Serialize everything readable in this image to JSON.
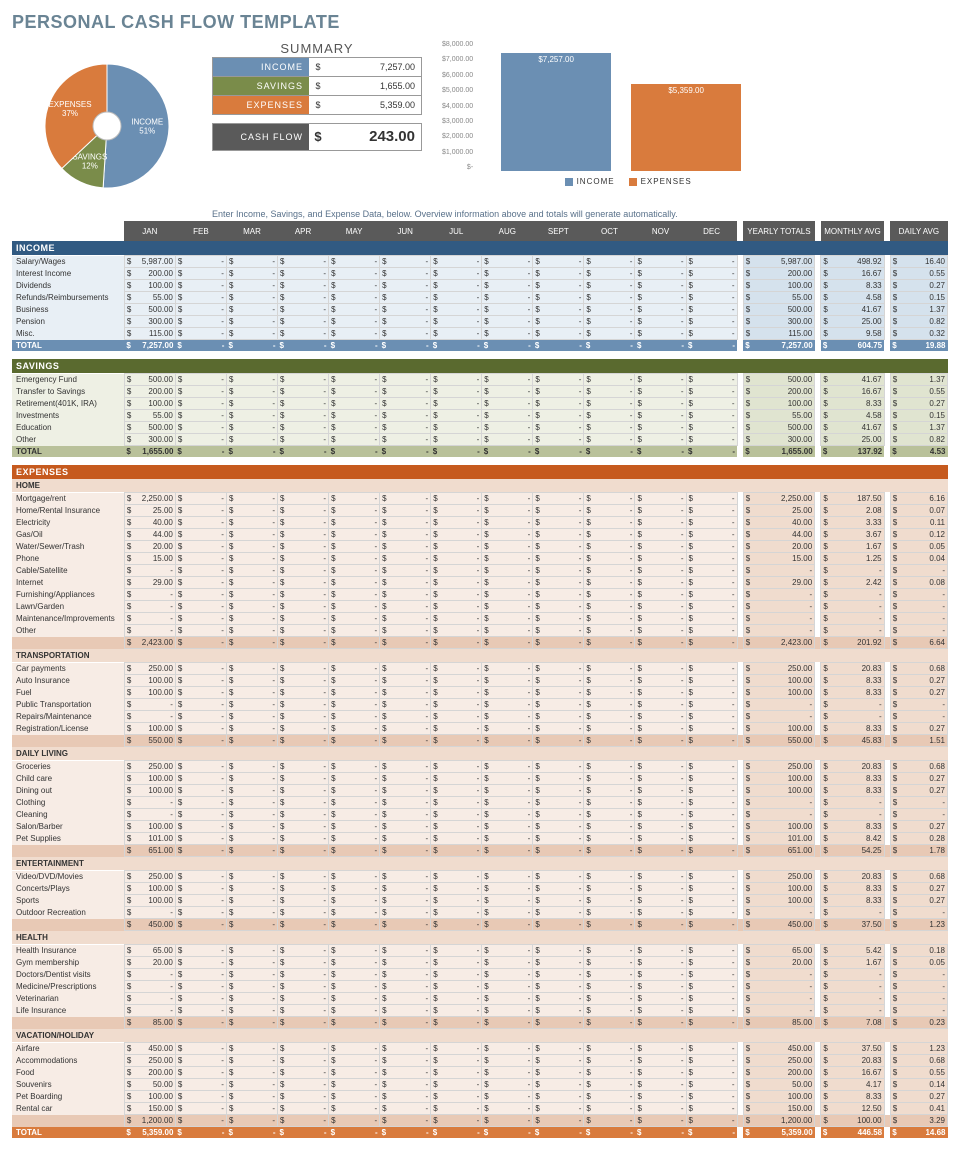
{
  "title": "PERSONAL CASH FLOW TEMPLATE",
  "note": "Enter Income, Savings, and Expense Data, below.  Overview information above and totals will generate automatically.",
  "colors": {
    "income": "#6b8fb3",
    "savings": "#7a8c4a",
    "expenses": "#d97b3d",
    "cashflow": "#5a5a5a"
  },
  "pie": {
    "type": "pie",
    "slices": [
      {
        "label": "INCOME",
        "pct": 51,
        "color": "#6b8fb3"
      },
      {
        "label": "SAVINGS",
        "pct": 12,
        "color": "#7a8c4a"
      },
      {
        "label": "EXPENSES",
        "pct": 37,
        "color": "#d97b3d"
      }
    ]
  },
  "summary": {
    "title": "SUMMARY",
    "rows": [
      {
        "label": "INCOME",
        "value": "7,257.00",
        "color": "#6b8fb3"
      },
      {
        "label": "SAVINGS",
        "value": "1,655.00",
        "color": "#7a8c4a"
      },
      {
        "label": "EXPENSES",
        "value": "5,359.00",
        "color": "#d97b3d"
      }
    ],
    "cashflow": {
      "label": "CASH FLOW",
      "value": "243.00"
    }
  },
  "barchart": {
    "type": "bar",
    "ymax": 8000,
    "ystep": 1000,
    "ylabels": [
      "$8,000.00",
      "$7,000.00",
      "$6,000.00",
      "$5,000.00",
      "$4,000.00",
      "$3,000.00",
      "$2,000.00",
      "$1,000.00",
      "$-"
    ],
    "bars": [
      {
        "label": "INCOME",
        "value": 7257,
        "display": "$7,257.00",
        "color": "#6b8fb3"
      },
      {
        "label": "EXPENSES",
        "value": 5359,
        "display": "$5,359.00",
        "color": "#d97b3d"
      }
    ]
  },
  "months": [
    "JAN",
    "FEB",
    "MAR",
    "APR",
    "MAY",
    "JUN",
    "JUL",
    "AUG",
    "SEPT",
    "OCT",
    "NOV",
    "DEC"
  ],
  "agg": [
    "YEARLY TOTALS",
    "MONTHLY AVG",
    "DAILY AVG"
  ],
  "sections": [
    {
      "name": "INCOME",
      "color": "#315a82",
      "rowcls": "income-bg",
      "rows": [
        {
          "l": "Salary/Wages",
          "jan": "5,987.00",
          "yt": "5,987.00",
          "ma": "498.92",
          "da": "16.40"
        },
        {
          "l": "Interest Income",
          "jan": "200.00",
          "yt": "200.00",
          "ma": "16.67",
          "da": "0.55"
        },
        {
          "l": "Dividends",
          "jan": "100.00",
          "yt": "100.00",
          "ma": "8.33",
          "da": "0.27"
        },
        {
          "l": "Refunds/Reimbursements",
          "jan": "55.00",
          "yt": "55.00",
          "ma": "4.58",
          "da": "0.15"
        },
        {
          "l": "Business",
          "jan": "500.00",
          "yt": "500.00",
          "ma": "41.67",
          "da": "1.37"
        },
        {
          "l": "Pension",
          "jan": "300.00",
          "yt": "300.00",
          "ma": "25.00",
          "da": "0.82"
        },
        {
          "l": "Misc.",
          "jan": "115.00",
          "yt": "115.00",
          "ma": "9.58",
          "da": "0.32"
        }
      ],
      "total": {
        "l": "TOTAL",
        "jan": "7,257.00",
        "yt": "7,257.00",
        "ma": "604.75",
        "da": "19.88"
      }
    },
    {
      "name": "SAVINGS",
      "color": "#5a6a2f",
      "rowcls": "sav-bg",
      "rows": [
        {
          "l": "Emergency Fund",
          "jan": "500.00",
          "yt": "500.00",
          "ma": "41.67",
          "da": "1.37"
        },
        {
          "l": "Transfer to Savings",
          "jan": "200.00",
          "yt": "200.00",
          "ma": "16.67",
          "da": "0.55"
        },
        {
          "l": "Retirement(401K, IRA)",
          "jan": "100.00",
          "yt": "100.00",
          "ma": "8.33",
          "da": "0.27"
        },
        {
          "l": "Investments",
          "jan": "55.00",
          "yt": "55.00",
          "ma": "4.58",
          "da": "0.15"
        },
        {
          "l": "Education",
          "jan": "500.00",
          "yt": "500.00",
          "ma": "41.67",
          "da": "1.37"
        },
        {
          "l": "Other",
          "jan": "300.00",
          "yt": "300.00",
          "ma": "25.00",
          "da": "0.82"
        }
      ],
      "total": {
        "l": "TOTAL",
        "jan": "1,655.00",
        "yt": "1,655.00",
        "ma": "137.92",
        "da": "4.53"
      }
    },
    {
      "name": "EXPENSES",
      "color": "#c65a1e",
      "rowcls": "exp-bg",
      "groups": [
        {
          "name": "HOME",
          "rows": [
            {
              "l": "Mortgage/rent",
              "jan": "2,250.00",
              "yt": "2,250.00",
              "ma": "187.50",
              "da": "6.16"
            },
            {
              "l": "Home/Rental Insurance",
              "jan": "25.00",
              "yt": "25.00",
              "ma": "2.08",
              "da": "0.07"
            },
            {
              "l": "Electricity",
              "jan": "40.00",
              "yt": "40.00",
              "ma": "3.33",
              "da": "0.11"
            },
            {
              "l": "Gas/Oil",
              "jan": "44.00",
              "yt": "44.00",
              "ma": "3.67",
              "da": "0.12"
            },
            {
              "l": "Water/Sewer/Trash",
              "jan": "20.00",
              "yt": "20.00",
              "ma": "1.67",
              "da": "0.05"
            },
            {
              "l": "Phone",
              "jan": "15.00",
              "yt": "15.00",
              "ma": "1.25",
              "da": "0.04"
            },
            {
              "l": "Cable/Satellite",
              "jan": "-",
              "yt": "-",
              "ma": "-",
              "da": "-"
            },
            {
              "l": "Internet",
              "jan": "29.00",
              "yt": "29.00",
              "ma": "2.42",
              "da": "0.08"
            },
            {
              "l": "Furnishing/Appliances",
              "jan": "-",
              "yt": "-",
              "ma": "-",
              "da": "-"
            },
            {
              "l": "Lawn/Garden",
              "jan": "-",
              "yt": "-",
              "ma": "-",
              "da": "-"
            },
            {
              "l": "Maintenance/Improvements",
              "jan": "-",
              "yt": "-",
              "ma": "-",
              "da": "-"
            },
            {
              "l": "Other",
              "jan": "-",
              "yt": "-",
              "ma": "-",
              "da": "-"
            }
          ],
          "sub": {
            "jan": "2,423.00",
            "yt": "2,423.00",
            "ma": "201.92",
            "da": "6.64"
          }
        },
        {
          "name": "TRANSPORTATION",
          "rows": [
            {
              "l": "Car payments",
              "jan": "250.00",
              "yt": "250.00",
              "ma": "20.83",
              "da": "0.68"
            },
            {
              "l": "Auto Insurance",
              "jan": "100.00",
              "yt": "100.00",
              "ma": "8.33",
              "da": "0.27"
            },
            {
              "l": "Fuel",
              "jan": "100.00",
              "yt": "100.00",
              "ma": "8.33",
              "da": "0.27"
            },
            {
              "l": "Public Transportation",
              "jan": "-",
              "yt": "-",
              "ma": "-",
              "da": "-"
            },
            {
              "l": "Repairs/Maintenance",
              "jan": "-",
              "yt": "-",
              "ma": "-",
              "da": "-"
            },
            {
              "l": "Registration/License",
              "jan": "100.00",
              "yt": "100.00",
              "ma": "8.33",
              "da": "0.27"
            }
          ],
          "sub": {
            "jan": "550.00",
            "yt": "550.00",
            "ma": "45.83",
            "da": "1.51"
          }
        },
        {
          "name": "DAILY LIVING",
          "rows": [
            {
              "l": "Groceries",
              "jan": "250.00",
              "yt": "250.00",
              "ma": "20.83",
              "da": "0.68"
            },
            {
              "l": "Child care",
              "jan": "100.00",
              "yt": "100.00",
              "ma": "8.33",
              "da": "0.27"
            },
            {
              "l": "Dining out",
              "jan": "100.00",
              "yt": "100.00",
              "ma": "8.33",
              "da": "0.27"
            },
            {
              "l": "Clothing",
              "jan": "-",
              "yt": "-",
              "ma": "-",
              "da": "-"
            },
            {
              "l": "Cleaning",
              "jan": "-",
              "yt": "-",
              "ma": "-",
              "da": "-"
            },
            {
              "l": "Salon/Barber",
              "jan": "100.00",
              "yt": "100.00",
              "ma": "8.33",
              "da": "0.27"
            },
            {
              "l": "Pet Supplies",
              "jan": "101.00",
              "yt": "101.00",
              "ma": "8.42",
              "da": "0.28"
            }
          ],
          "sub": {
            "jan": "651.00",
            "yt": "651.00",
            "ma": "54.25",
            "da": "1.78"
          }
        },
        {
          "name": "ENTERTAINMENT",
          "rows": [
            {
              "l": "Video/DVD/Movies",
              "jan": "250.00",
              "yt": "250.00",
              "ma": "20.83",
              "da": "0.68"
            },
            {
              "l": "Concerts/Plays",
              "jan": "100.00",
              "yt": "100.00",
              "ma": "8.33",
              "da": "0.27"
            },
            {
              "l": "Sports",
              "jan": "100.00",
              "yt": "100.00",
              "ma": "8.33",
              "da": "0.27"
            },
            {
              "l": "Outdoor Recreation",
              "jan": "-",
              "yt": "-",
              "ma": "-",
              "da": "-"
            }
          ],
          "sub": {
            "jan": "450.00",
            "yt": "450.00",
            "ma": "37.50",
            "da": "1.23"
          }
        },
        {
          "name": "HEALTH",
          "rows": [
            {
              "l": "Health Insurance",
              "jan": "65.00",
              "yt": "65.00",
              "ma": "5.42",
              "da": "0.18"
            },
            {
              "l": "Gym membership",
              "jan": "20.00",
              "yt": "20.00",
              "ma": "1.67",
              "da": "0.05"
            },
            {
              "l": "Doctors/Dentist visits",
              "jan": "-",
              "yt": "-",
              "ma": "-",
              "da": "-"
            },
            {
              "l": "Medicine/Prescriptions",
              "jan": "-",
              "yt": "-",
              "ma": "-",
              "da": "-"
            },
            {
              "l": "Veterinarian",
              "jan": "-",
              "yt": "-",
              "ma": "-",
              "da": "-"
            },
            {
              "l": "Life Insurance",
              "jan": "-",
              "yt": "-",
              "ma": "-",
              "da": "-"
            }
          ],
          "sub": {
            "jan": "85.00",
            "yt": "85.00",
            "ma": "7.08",
            "da": "0.23"
          }
        },
        {
          "name": "VACATION/HOLIDAY",
          "rows": [
            {
              "l": "Airfare",
              "jan": "450.00",
              "yt": "450.00",
              "ma": "37.50",
              "da": "1.23"
            },
            {
              "l": "Accommodations",
              "jan": "250.00",
              "yt": "250.00",
              "ma": "20.83",
              "da": "0.68"
            },
            {
              "l": "Food",
              "jan": "200.00",
              "yt": "200.00",
              "ma": "16.67",
              "da": "0.55"
            },
            {
              "l": "Souvenirs",
              "jan": "50.00",
              "yt": "50.00",
              "ma": "4.17",
              "da": "0.14"
            },
            {
              "l": "Pet Boarding",
              "jan": "100.00",
              "yt": "100.00",
              "ma": "8.33",
              "da": "0.27"
            },
            {
              "l": "Rental car",
              "jan": "150.00",
              "yt": "150.00",
              "ma": "12.50",
              "da": "0.41"
            }
          ],
          "sub": {
            "jan": "1,200.00",
            "yt": "1,200.00",
            "ma": "100.00",
            "da": "3.29"
          }
        }
      ],
      "total": {
        "l": "TOTAL",
        "jan": "5,359.00",
        "yt": "5,359.00",
        "ma": "446.58",
        "da": "14.68"
      }
    }
  ]
}
